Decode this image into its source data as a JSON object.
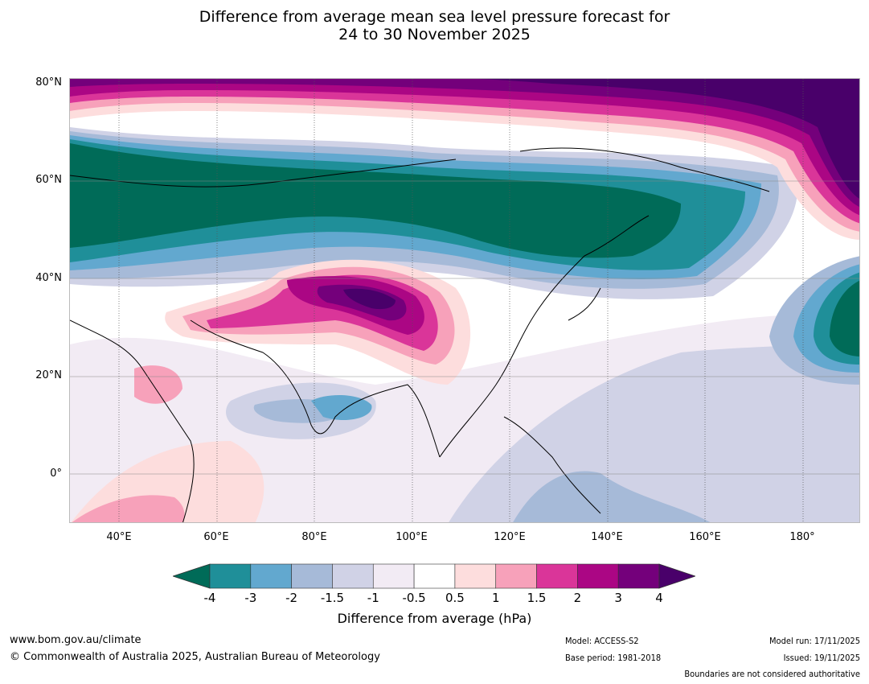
{
  "title": {
    "line1": "Difference from average mean sea level pressure forecast for",
    "line2": "24 to 30 November 2025"
  },
  "map": {
    "lat_labels": [
      "80°N",
      "60°N",
      "40°N",
      "20°N",
      "0°"
    ],
    "lon_labels": [
      "40°E",
      "60°E",
      "80°E",
      "100°E",
      "120°E",
      "140°E",
      "160°E",
      "180°"
    ],
    "extent": {
      "lon_min": 30,
      "lon_max": 192,
      "lat_min": -10,
      "lat_max": 81
    }
  },
  "colorbar": {
    "ticks": [
      "-4",
      "-3",
      "-2",
      "-1.5",
      "-1",
      "-0.5",
      "0.5",
      "1",
      "1.5",
      "2",
      "3",
      "4"
    ],
    "colors": {
      "below_min": "#006b58",
      "bins": [
        "#1f8f99",
        "#62a8cf",
        "#a6bad8",
        "#d0d2e6",
        "#f2ebf4",
        "#ffffff",
        "#fddddd",
        "#f7a1ba",
        "#da3599",
        "#ab0684",
        "#74007b"
      ],
      "above_max": "#49006a"
    },
    "label": "Difference from average (hPa)"
  },
  "footer": {
    "url": "www.bom.gov.au/climate",
    "copyright": "© Commonwealth of Australia 2025, Australian Bureau of Meteorology",
    "model": "Model: ACCESS-S2",
    "base_period": "Base period: 1981-2018",
    "model_run": "Model run: 17/11/2025",
    "issued": "Issued: 19/11/2025",
    "boundaries": "Boundaries are not considered authoritative"
  }
}
